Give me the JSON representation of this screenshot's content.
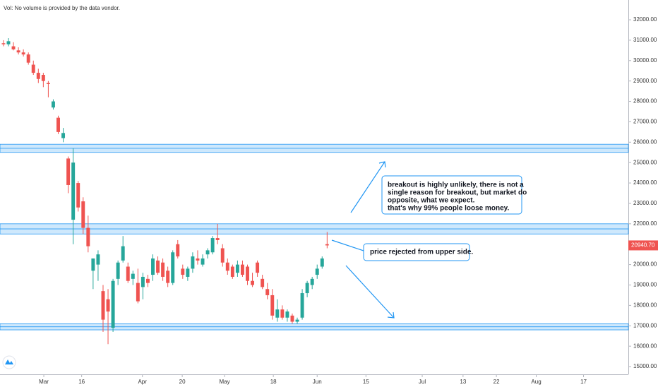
{
  "chart_data": {
    "type": "candlestick",
    "volume_note": "Vol: No volume is provided by the data vendor.",
    "ohlc": [
      [
        30850,
        31000,
        30700,
        30800
      ],
      [
        30800,
        31100,
        30700,
        30950
      ],
      [
        30700,
        30900,
        30500,
        30550
      ],
      [
        30500,
        30650,
        30300,
        30400
      ],
      [
        30400,
        30550,
        30200,
        30300
      ],
      [
        30300,
        30400,
        29800,
        29900
      ],
      [
        29800,
        30000,
        29300,
        29400
      ],
      [
        29400,
        29600,
        28900,
        29100
      ],
      [
        29300,
        29400,
        28700,
        29000
      ],
      [
        28900,
        29000,
        28200,
        28850
      ],
      [
        27700,
        28100,
        27600,
        28000
      ],
      [
        27200,
        27300,
        26400,
        26500
      ],
      [
        26200,
        26700,
        26000,
        26450
      ],
      [
        25200,
        25300,
        23500,
        23900
      ],
      [
        22200,
        25700,
        21000,
        25000
      ],
      [
        24000,
        24100,
        22600,
        22800
      ],
      [
        23100,
        23300,
        21500,
        21800
      ],
      [
        21800,
        22400,
        20600,
        20900
      ],
      [
        19700,
        20300,
        18800,
        20300
      ],
      [
        20000,
        20700,
        19200,
        20500
      ],
      [
        18700,
        19000,
        16700,
        17300
      ],
      [
        18300,
        18800,
        16100,
        17700
      ],
      [
        16900,
        19300,
        16700,
        19200
      ],
      [
        19300,
        20200,
        19000,
        20100
      ],
      [
        20200,
        21400,
        20100,
        20900
      ],
      [
        19900,
        20100,
        19100,
        19200
      ],
      [
        19300,
        19700,
        19000,
        19550
      ],
      [
        19100,
        19800,
        18100,
        18200
      ],
      [
        18900,
        19600,
        18300,
        19400
      ],
      [
        19300,
        19500,
        18900,
        19100
      ],
      [
        19500,
        20500,
        19200,
        20300
      ],
      [
        20200,
        20400,
        19500,
        19600
      ],
      [
        20100,
        20300,
        19200,
        19400
      ],
      [
        19700,
        19900,
        18900,
        19100
      ],
      [
        19100,
        20700,
        19000,
        20600
      ],
      [
        21000,
        21200,
        20300,
        20400
      ],
      [
        19800,
        20000,
        19300,
        19500
      ],
      [
        19400,
        19900,
        19200,
        19800
      ],
      [
        19800,
        20600,
        19600,
        20400
      ],
      [
        20300,
        20700,
        20000,
        20200
      ],
      [
        20000,
        20500,
        19900,
        20300
      ],
      [
        20500,
        20800,
        20300,
        20700
      ],
      [
        20600,
        21400,
        20500,
        21300
      ],
      [
        21300,
        22000,
        21000,
        21200
      ],
      [
        20800,
        21000,
        19900,
        20100
      ],
      [
        20100,
        20300,
        19500,
        19700
      ],
      [
        19900,
        20000,
        19300,
        19400
      ],
      [
        19600,
        20200,
        19400,
        20000
      ],
      [
        20000,
        20200,
        19400,
        19500
      ],
      [
        19900,
        20000,
        19000,
        19200
      ],
      [
        19200,
        19600,
        18900,
        19000
      ],
      [
        20100,
        20200,
        19400,
        19600
      ],
      [
        19300,
        19500,
        18800,
        18900
      ],
      [
        18800,
        19100,
        18300,
        18500
      ],
      [
        18500,
        18800,
        17300,
        17500
      ],
      [
        17400,
        18300,
        17200,
        17800
      ],
      [
        17800,
        18000,
        17300,
        17400
      ],
      [
        17400,
        17800,
        17200,
        17700
      ],
      [
        17500,
        17600,
        17100,
        17200
      ],
      [
        17200,
        17400,
        17100,
        17300
      ],
      [
        17400,
        18800,
        17300,
        18600
      ],
      [
        18600,
        19200,
        18400,
        19100
      ],
      [
        19000,
        19400,
        18800,
        19300
      ],
      [
        19500,
        20000,
        19300,
        19800
      ],
      [
        19900,
        20400,
        19800,
        20300
      ],
      [
        21000,
        21600,
        20800,
        20940.7
      ]
    ],
    "last_price_label": "20940.70",
    "up_color": "#26a69a",
    "down_color": "#ef5350",
    "zones": [
      [
        25500,
        25900
      ],
      [
        21500,
        22000
      ],
      [
        16800,
        17100
      ]
    ],
    "zone_color": "#2196f3",
    "xlim": [
      -0.7,
      125.5
    ],
    "xticks": [
      {
        "value": 8.1,
        "label": "Mar"
      },
      {
        "value": 15.7,
        "label": "16"
      },
      {
        "value": 27.9,
        "label": "Apr"
      },
      {
        "value": 35.9,
        "label": "20"
      },
      {
        "value": 44.4,
        "label": "May"
      },
      {
        "value": 54.2,
        "label": "18"
      },
      {
        "value": 63,
        "label": "Jun"
      },
      {
        "value": 72.8,
        "label": "15"
      },
      {
        "value": 84.1,
        "label": "Jul"
      },
      {
        "value": 92.3,
        "label": "13"
      },
      {
        "value": 99,
        "label": "22"
      },
      {
        "value": 107,
        "label": "Aug"
      },
      {
        "value": 116.5,
        "label": "17"
      }
    ],
    "ylim": [
      14620,
      32970
    ],
    "yticks": [
      {
        "value": 15000,
        "label": "15000.00"
      },
      {
        "value": 16000,
        "label": "16000.00"
      },
      {
        "value": 17000,
        "label": "17000.00"
      },
      {
        "value": 18000,
        "label": "18000.00"
      },
      {
        "value": 19000,
        "label": "19000.00"
      },
      {
        "value": 20000,
        "label": "20000.00"
      },
      {
        "value": 21000,
        "label": "21000.00"
      },
      {
        "value": 22000,
        "label": "22000.00"
      },
      {
        "value": 23000,
        "label": "23000.00"
      },
      {
        "value": 24000,
        "label": "24000.00"
      },
      {
        "value": 25000,
        "label": "25000.00"
      },
      {
        "value": 26000,
        "label": "26000.00"
      },
      {
        "value": 27000,
        "label": "27000.00"
      },
      {
        "value": 28000,
        "label": "28000.00"
      },
      {
        "value": 29000,
        "label": "29000.00"
      },
      {
        "value": 30000,
        "label": "30000.00"
      },
      {
        "value": 31000,
        "label": "31000.00"
      },
      {
        "value": 32000,
        "label": "32000.00"
      }
    ],
    "annotations": [
      [
        "breakout is highly unlikely, there is not a",
        "single reason for breakout, but market do",
        "opposite, what we expect.",
        "that's why 99% people loose money."
      ],
      [
        "price rejected from upper side."
      ]
    ]
  }
}
